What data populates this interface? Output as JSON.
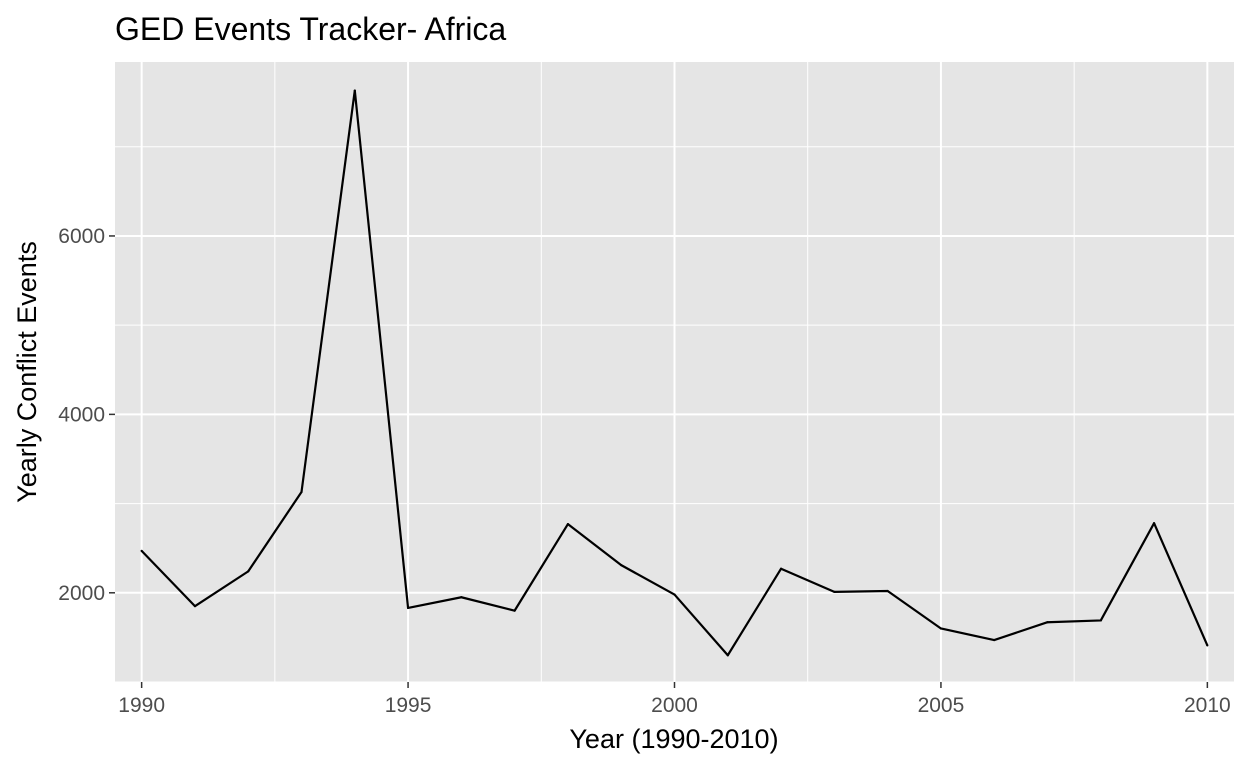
{
  "chart_data": {
    "type": "line",
    "title": "GED Events Tracker- Africa",
    "xlabel": "Year (1990-2010)",
    "ylabel": "Yearly Conflict Events",
    "x": [
      1990,
      1991,
      1992,
      1993,
      1994,
      1995,
      1996,
      1997,
      1998,
      1999,
      2000,
      2001,
      2002,
      2003,
      2004,
      2005,
      2006,
      2007,
      2008,
      2009,
      2010
    ],
    "series": [
      {
        "values": [
          2470,
          1850,
          2240,
          3130,
          7630,
          1830,
          1950,
          1800,
          2770,
          2310,
          1980,
          1300,
          2270,
          2010,
          2020,
          1600,
          1470,
          1670,
          1690,
          2780,
          1410
        ],
        "color": "#000000"
      }
    ],
    "xlim": [
      1989.5,
      2010.5
    ],
    "ylim": [
      1000,
      7950
    ],
    "x_ticks": [
      "1990",
      "1995",
      "2000",
      "2005",
      "2010"
    ],
    "y_ticks": [
      "2000",
      "4000",
      "6000"
    ],
    "grid": true,
    "panel_background": "#e5e5e5",
    "grid_color": "#ffffff"
  }
}
